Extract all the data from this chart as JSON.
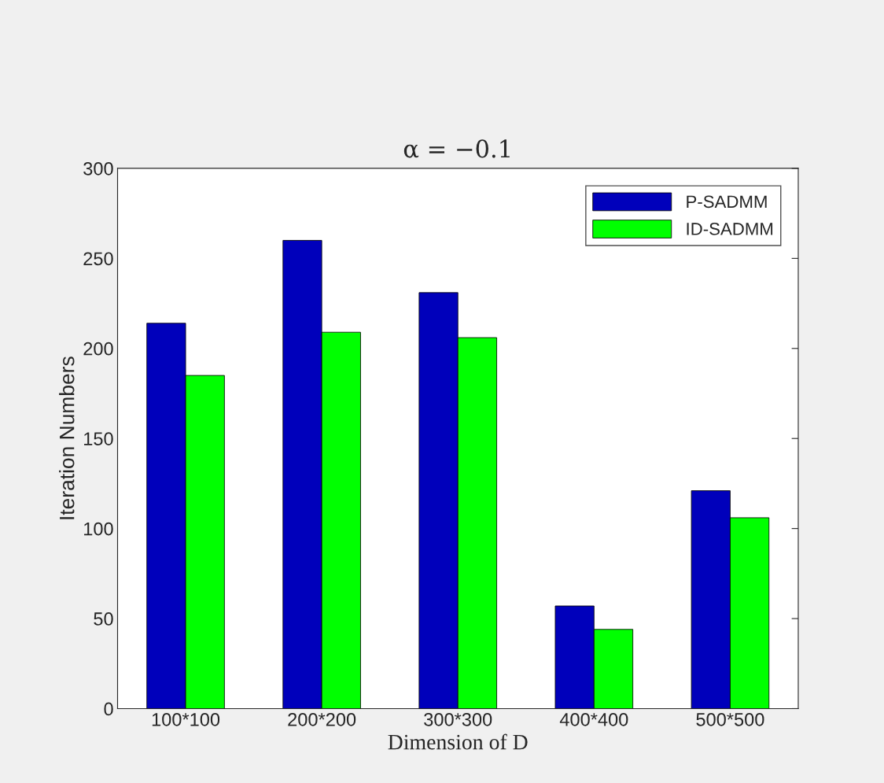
{
  "chart_data": {
    "type": "bar",
    "title": "α = −0.1",
    "xlabel": "Dimension of D",
    "ylabel": "Iteration Numbers",
    "categories": [
      "100*100",
      "200*200",
      "300*300",
      "400*400",
      "500*500"
    ],
    "series": [
      {
        "name": "P-SADMM",
        "color": "#0000bb",
        "values": [
          214,
          260,
          231,
          57,
          121
        ]
      },
      {
        "name": "ID-SADMM",
        "color": "#00ff00",
        "values": [
          185,
          209,
          206,
          44,
          106
        ]
      }
    ],
    "ylim": [
      0,
      300
    ],
    "yticks": [
      0,
      50,
      100,
      150,
      200,
      250,
      300
    ],
    "grid": false,
    "legend": "top right"
  }
}
